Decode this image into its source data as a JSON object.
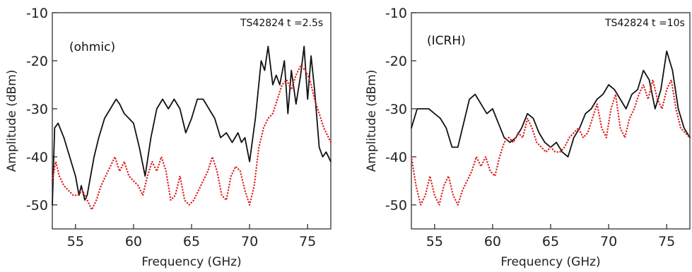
{
  "chart_data": [
    {
      "type": "line",
      "annotation_shot": "TS42824",
      "annotation_time": "t =2.5s",
      "panel_label": "(ohmic)",
      "xlabel": "Frequency (GHz)",
      "ylabel": "Amplitude (dBm)",
      "xlim": [
        53,
        77
      ],
      "ylim": [
        -55,
        -10
      ],
      "xticks": [
        55,
        60,
        65,
        70,
        75
      ],
      "yticks": [
        -10,
        -20,
        -30,
        -40,
        -50
      ],
      "series": [
        {
          "color": "#111111",
          "style": "solid",
          "x": [
            53,
            53.2,
            53.5,
            54,
            54.5,
            55,
            55.3,
            55.5,
            55.8,
            56,
            56.3,
            56.6,
            57,
            57.5,
            58,
            58.5,
            58.8,
            59.2,
            59.6,
            60,
            60.5,
            61,
            61.5,
            62,
            62.5,
            63,
            63.5,
            64,
            64.5,
            65,
            65.5,
            66,
            66.5,
            67,
            67.5,
            68,
            68.5,
            69,
            69.3,
            69.6,
            70,
            70.5,
            71,
            71.3,
            71.6,
            72,
            72.3,
            72.6,
            73,
            73.3,
            73.6,
            74,
            74.4,
            74.7,
            75,
            75.3,
            75.6,
            76,
            76.3,
            76.6,
            77
          ],
          "y": [
            -50,
            -34,
            -33,
            -36,
            -40,
            -44,
            -48,
            -46,
            -49,
            -48,
            -44,
            -40,
            -36,
            -32,
            -30,
            -28,
            -29,
            -31,
            -32,
            -33,
            -38,
            -44,
            -36,
            -30,
            -28,
            -30,
            -28,
            -30,
            -35,
            -32,
            -28,
            -28,
            -30,
            -32,
            -36,
            -35,
            -37,
            -35,
            -37,
            -36,
            -41,
            -32,
            -20,
            -22,
            -17,
            -25,
            -23,
            -25,
            -20,
            -31,
            -22,
            -29,
            -23,
            -17,
            -28,
            -19,
            -26,
            -38,
            -40,
            -39,
            -41
          ]
        },
        {
          "color": "#e02020",
          "style": "dotted",
          "x": [
            53,
            53.3,
            53.6,
            54,
            54.4,
            54.8,
            55.2,
            55.6,
            56,
            56.4,
            56.8,
            57.2,
            57.6,
            58,
            58.4,
            58.8,
            59.2,
            59.6,
            60,
            60.4,
            60.8,
            61.2,
            61.6,
            62,
            62.4,
            62.8,
            63.2,
            63.6,
            64,
            64.4,
            64.8,
            65.2,
            65.6,
            66,
            66.4,
            66.8,
            67.2,
            67.6,
            68,
            68.4,
            68.8,
            69.2,
            69.6,
            70,
            70.4,
            70.8,
            71.2,
            71.6,
            72,
            72.4,
            72.8,
            73.2,
            73.6,
            74,
            74.4,
            74.8,
            75.2,
            75.6,
            76,
            76.4,
            77
          ],
          "y": [
            -45,
            -41,
            -44,
            -46,
            -47,
            -48,
            -48,
            -47,
            -49,
            -51,
            -49,
            -46,
            -44,
            -42,
            -40,
            -43,
            -41,
            -44,
            -45,
            -46,
            -48,
            -44,
            -41,
            -43,
            -40,
            -43,
            -49,
            -48,
            -44,
            -49,
            -50,
            -49,
            -47,
            -45,
            -43,
            -40,
            -43,
            -48,
            -49,
            -44,
            -42,
            -43,
            -47,
            -50,
            -46,
            -38,
            -34,
            -32,
            -31,
            -28,
            -25,
            -24,
            -26,
            -23,
            -21,
            -22,
            -24,
            -28,
            -31,
            -34,
            -37
          ]
        }
      ]
    },
    {
      "type": "line",
      "annotation_shot": "TS42824",
      "annotation_time": "t =10s",
      "panel_label": "(ICRH)",
      "xlabel": "Frequency (GHz)",
      "ylabel": "Amplitude (dBm)",
      "xlim": [
        53,
        77
      ],
      "ylim": [
        -55,
        -10
      ],
      "xticks": [
        55,
        60,
        65,
        70,
        75
      ],
      "yticks": [
        -10,
        -20,
        -30,
        -40,
        -50
      ],
      "series": [
        {
          "color": "#111111",
          "style": "solid",
          "x": [
            53,
            53.5,
            54,
            54.5,
            55,
            55.5,
            56,
            56.5,
            57,
            57.5,
            58,
            58.5,
            59,
            59.5,
            60,
            60.5,
            61,
            61.5,
            62,
            62.5,
            63,
            63.5,
            64,
            64.5,
            65,
            65.5,
            66,
            66.5,
            67,
            67.5,
            68,
            68.5,
            69,
            69.5,
            70,
            70.5,
            71,
            71.5,
            72,
            72.5,
            73,
            73.5,
            74,
            74.5,
            75,
            75.5,
            76,
            76.5,
            77
          ],
          "y": [
            -34,
            -30,
            -30,
            -30,
            -31,
            -32,
            -34,
            -38,
            -38,
            -33,
            -28,
            -27,
            -29,
            -31,
            -30,
            -33,
            -36,
            -37,
            -36,
            -34,
            -31,
            -32,
            -35,
            -37,
            -38,
            -37,
            -39,
            -40,
            -36,
            -34,
            -31,
            -30,
            -28,
            -27,
            -25,
            -26,
            -28,
            -30,
            -27,
            -26,
            -22,
            -24,
            -30,
            -26,
            -18,
            -22,
            -30,
            -34,
            -36
          ]
        },
        {
          "color": "#e02020",
          "style": "dotted",
          "x": [
            53,
            53.4,
            53.8,
            54.2,
            54.6,
            55,
            55.4,
            55.8,
            56.2,
            56.6,
            57,
            57.4,
            57.8,
            58.2,
            58.6,
            59,
            59.4,
            59.8,
            60.2,
            60.6,
            61,
            61.4,
            61.8,
            62.2,
            62.6,
            63,
            63.4,
            63.8,
            64.2,
            64.6,
            65,
            65.4,
            65.8,
            66.2,
            66.6,
            67,
            67.4,
            67.8,
            68.2,
            68.6,
            69,
            69.4,
            69.8,
            70.2,
            70.6,
            71,
            71.4,
            71.8,
            72.2,
            72.6,
            73,
            73.4,
            73.8,
            74.2,
            74.6,
            75,
            75.4,
            75.8,
            76.2,
            76.6,
            77
          ],
          "y": [
            -40,
            -46,
            -50,
            -48,
            -44,
            -48,
            -50,
            -46,
            -44,
            -48,
            -50,
            -47,
            -45,
            -43,
            -40,
            -42,
            -40,
            -43,
            -44,
            -40,
            -37,
            -36,
            -37,
            -35,
            -36,
            -32,
            -34,
            -37,
            -38,
            -39,
            -38,
            -39,
            -39,
            -38,
            -36,
            -35,
            -34,
            -36,
            -35,
            -32,
            -29,
            -34,
            -36,
            -30,
            -27,
            -34,
            -36,
            -32,
            -30,
            -27,
            -25,
            -28,
            -24,
            -28,
            -30,
            -26,
            -24,
            -30,
            -34,
            -35,
            -36
          ]
        }
      ]
    }
  ]
}
